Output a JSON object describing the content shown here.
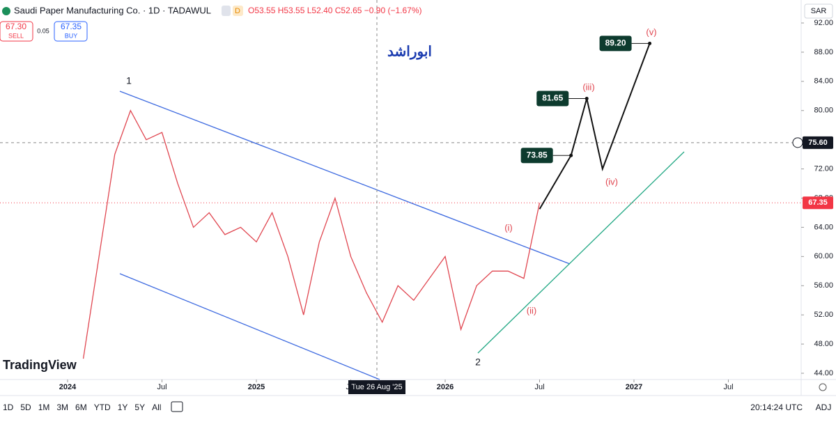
{
  "header": {
    "symbol": "Saudi Paper Manufacturing Co. · 1D · TADAWUL",
    "badge": "D",
    "ohlc": "O53.55 H53.55 L52.40 C52.65 −0.90 (−1.67%)",
    "sell_price": "67.30",
    "sell": "SELL",
    "spread": "0.05",
    "buy_price": "67.35",
    "buy": "BUY",
    "author": "ابوراشد",
    "currency": "SAR",
    "logo": "TradingView"
  },
  "toolbar": {
    "ranges": [
      "1D",
      "5D",
      "1M",
      "3M",
      "6M",
      "YTD",
      "1Y",
      "5Y",
      "All"
    ],
    "clock": "20:14:24 UTC",
    "adj": "ADJ"
  },
  "crosshair": {
    "date_label": "Tue 26 Aug '25",
    "price": 75.6,
    "price_label": "75.60"
  },
  "waves": [
    "1",
    "2",
    "(i)",
    "(ii)",
    "(iii)",
    "(iv)",
    "(v)"
  ],
  "chart_data": {
    "type": "line",
    "x": [
      "2024-02",
      "2024-03",
      "2024-04",
      "2024-05",
      "2024-06",
      "2024-07",
      "2024-08",
      "2024-09",
      "2024-10",
      "2024-11",
      "2024-12",
      "2025-01",
      "2025-02",
      "2025-03",
      "2025-04",
      "2025-05",
      "2025-06",
      "2025-07",
      "2025-08",
      "2025-09",
      "2025-10",
      "2025-11",
      "2025-12",
      "2026-01",
      "2026-02",
      "2026-03",
      "2026-04",
      "2026-05",
      "2026-06",
      "2026-07"
    ],
    "series": [
      {
        "name": "close",
        "color": "#e0454f",
        "values": [
          46,
          60,
          74,
          80,
          76,
          77,
          70,
          64,
          66,
          63,
          64,
          62,
          66,
          60,
          52,
          62,
          68,
          60,
          55,
          51,
          56,
          54,
          57,
          60,
          50,
          56,
          58,
          58,
          57,
          67.35
        ]
      },
      {
        "name": "projection",
        "color": "#111111",
        "x": [
          "2026-07",
          "2026-09",
          "2026-10",
          "2026-11",
          "2027-02"
        ],
        "values": [
          66.5,
          73.85,
          81.65,
          72,
          89.2
        ],
        "value_labels": [
          null,
          "73.85",
          "81.65",
          null,
          "89.20"
        ]
      }
    ],
    "last_price": 67.35,
    "last_label": "67.35",
    "ylim": [
      43.9,
      93.1
    ],
    "yticks": [
      {
        "value": 44,
        "label": "44.00"
      },
      {
        "value": 48,
        "label": "48.00"
      },
      {
        "value": 52,
        "label": "52.00"
      },
      {
        "value": 56,
        "label": "56.00"
      },
      {
        "value": 60,
        "label": "60.00"
      },
      {
        "value": 64,
        "label": "64.00"
      },
      {
        "value": 68,
        "label": "68.00"
      },
      {
        "value": 72,
        "label": "72.00"
      },
      {
        "value": 76,
        "label": "76.00"
      },
      {
        "value": 80,
        "label": "80.00"
      },
      {
        "value": 84,
        "label": "84.00"
      },
      {
        "value": 88,
        "label": "88.00"
      },
      {
        "value": 92,
        "label": "92.00"
      }
    ],
    "xticks": [
      {
        "value": "2024-01",
        "label": "2024"
      },
      {
        "value": "2024-07",
        "label": "Jul"
      },
      {
        "value": "2025-01",
        "label": "2025"
      },
      {
        "value": "2025-07",
        "label": "Jul"
      },
      {
        "value": "2026-01",
        "label": "2026"
      },
      {
        "value": "2026-07",
        "label": "Jul"
      },
      {
        "value": "2027-01",
        "label": "2027"
      },
      {
        "value": "2027-07",
        "label": "Jul"
      }
    ]
  }
}
